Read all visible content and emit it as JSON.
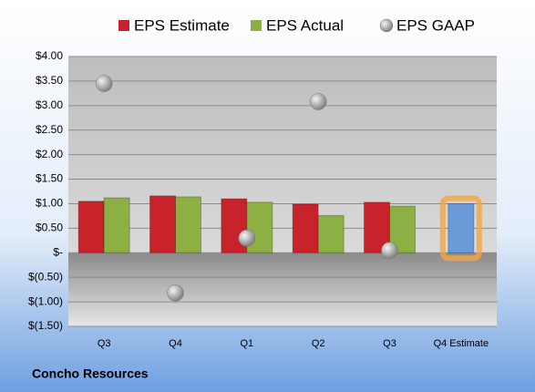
{
  "chart_data": {
    "type": "bar",
    "footer": "Concho Resources",
    "categories": [
      "Q3",
      "Q4",
      "Q1",
      "Q2",
      "Q3",
      "Q4 Estimate"
    ],
    "series": [
      {
        "name": "EPS Estimate",
        "color": "#c8232b",
        "colors": [
          "#c8232b",
          "#c8232b",
          "#c8232b",
          "#c8232b",
          "#c8232b",
          "#6a9ad8"
        ],
        "values": [
          1.05,
          1.16,
          1.1,
          0.99,
          1.03,
          1.0
        ]
      },
      {
        "name": "EPS Actual",
        "color": "#8cb043",
        "values": [
          1.12,
          1.14,
          1.03,
          0.76,
          0.95,
          null
        ]
      },
      {
        "name": "EPS GAAP",
        "type": "scatter",
        "color": "#a6a6a6",
        "values": [
          3.45,
          -0.82,
          0.3,
          3.08,
          0.05,
          null
        ]
      }
    ],
    "highlight_glow": "#f4a640",
    "ylim": [
      -1.5,
      4.0
    ],
    "yticks": [
      {
        "value": -1.5,
        "label": "$(1.50)"
      },
      {
        "value": -1.0,
        "label": "$(1.00)"
      },
      {
        "value": -0.5,
        "label": "$(0.50)"
      },
      {
        "value": 0,
        "label": "$-"
      },
      {
        "value": 0.5,
        "label": "$0.50"
      },
      {
        "value": 1.0,
        "label": "$1.00"
      },
      {
        "value": 1.5,
        "label": "$1.50"
      },
      {
        "value": 2.0,
        "label": "$2.00"
      },
      {
        "value": 2.5,
        "label": "$2.50"
      },
      {
        "value": 3.0,
        "label": "$3.00"
      },
      {
        "value": 3.5,
        "label": "$3.50"
      },
      {
        "value": 4.0,
        "label": "$4.00"
      }
    ],
    "grid": true
  }
}
